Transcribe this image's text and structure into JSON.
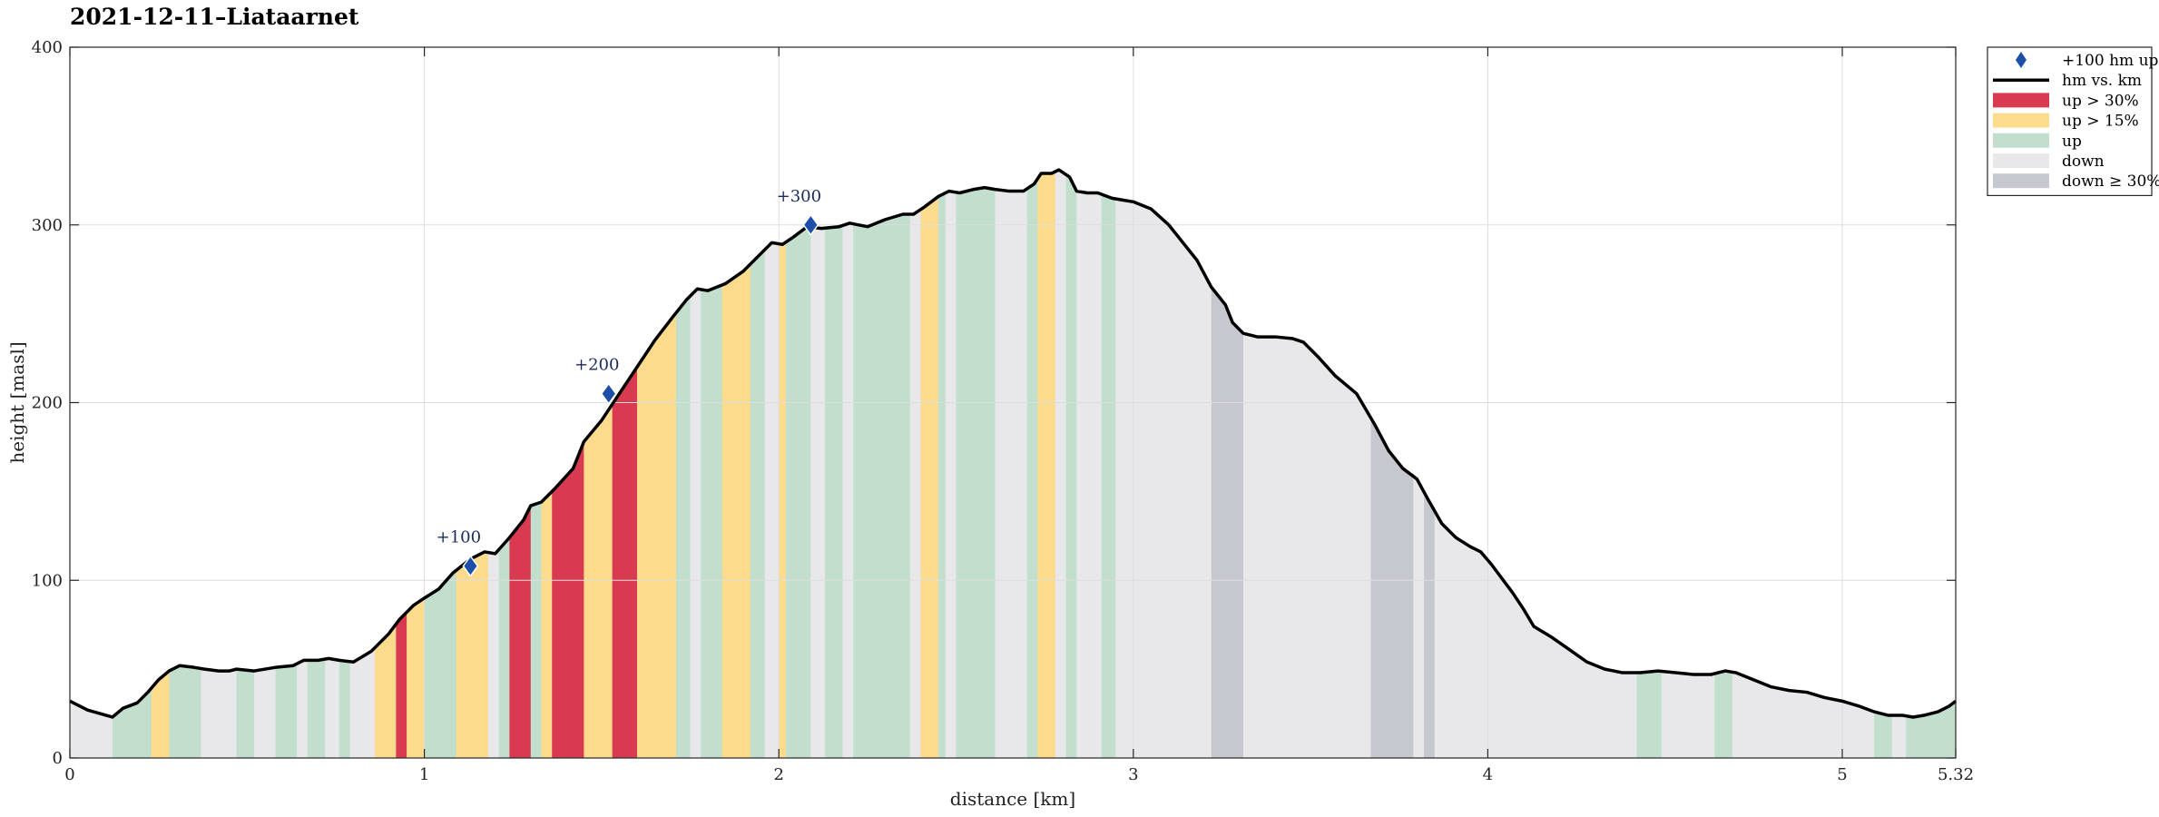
{
  "chart_data": {
    "type": "area",
    "title": "2021-12-11–Liataarnet",
    "xlabel": "distance [km]",
    "ylabel": "height [masl]",
    "xlim": [
      0,
      5.32
    ],
    "ylim": [
      0,
      400
    ],
    "x_ticks": [
      "0",
      "1",
      "2",
      "3",
      "4",
      "5",
      "5.32"
    ],
    "x_tick_values": [
      0,
      1,
      2,
      3,
      4,
      5,
      5.32
    ],
    "y_ticks": [
      "0",
      "100",
      "200",
      "300",
      "400"
    ],
    "y_tick_values": [
      0,
      100,
      200,
      300,
      400
    ],
    "grid": true,
    "legend_position": "outside-top-right",
    "colors": {
      "up30": "#D83A52",
      "up15": "#FDDB8C",
      "up": "#C2DECD",
      "down": "#E8E8EB",
      "down30": "#C6C8D0",
      "line": "#000000",
      "marker": "#1E4FA8",
      "grid": "#DDDDDD"
    },
    "series": [
      {
        "name": "hm vs. km",
        "x": [
          0,
          0.05,
          0.12,
          0.15,
          0.19,
          0.22,
          0.25,
          0.28,
          0.31,
          0.35,
          0.38,
          0.42,
          0.45,
          0.47,
          0.52,
          0.58,
          0.63,
          0.66,
          0.7,
          0.73,
          0.76,
          0.8,
          0.85,
          0.9,
          0.93,
          0.97,
          1.0,
          1.04,
          1.08,
          1.13,
          1.17,
          1.2,
          1.24,
          1.28,
          1.3,
          1.33,
          1.37,
          1.42,
          1.45,
          1.5,
          1.55,
          1.6,
          1.65,
          1.7,
          1.74,
          1.77,
          1.8,
          1.85,
          1.9,
          1.95,
          1.98,
          2.01,
          2.04,
          2.08,
          2.12,
          2.17,
          2.2,
          2.25,
          2.3,
          2.35,
          2.38,
          2.41,
          2.45,
          2.48,
          2.51,
          2.55,
          2.58,
          2.61,
          2.65,
          2.69,
          2.72,
          2.74,
          2.77,
          2.79,
          2.82,
          2.84,
          2.87,
          2.9,
          2.94,
          2.97,
          3.0,
          3.05,
          3.1,
          3.14,
          3.18,
          3.22,
          3.26,
          3.28,
          3.31,
          3.35,
          3.4,
          3.45,
          3.48,
          3.52,
          3.57,
          3.63,
          3.68,
          3.72,
          3.76,
          3.8,
          3.83,
          3.87,
          3.91,
          3.95,
          3.98,
          4.01,
          4.04,
          4.07,
          4.1,
          4.13,
          4.18,
          4.23,
          4.28,
          4.33,
          4.38,
          4.43,
          4.48,
          4.53,
          4.58,
          4.63,
          4.67,
          4.7,
          4.75,
          4.8,
          4.85,
          4.9,
          4.95,
          5.0,
          5.05,
          5.09,
          5.13,
          5.17,
          5.2,
          5.23,
          5.27,
          5.3,
          5.32
        ],
        "y": [
          32,
          27,
          23,
          28,
          31,
          37,
          44,
          49,
          52,
          51,
          50,
          49,
          49,
          50,
          49,
          51,
          52,
          55,
          55,
          56,
          55,
          54,
          60,
          70,
          78,
          86,
          90,
          95,
          104,
          112,
          116,
          115,
          124,
          134,
          142,
          144,
          152,
          163,
          178,
          190,
          205,
          220,
          235,
          248,
          258,
          264,
          263,
          267,
          274,
          284,
          290,
          289,
          293,
          299,
          298,
          299,
          301,
          299,
          303,
          306,
          306,
          310,
          316,
          319,
          318,
          320,
          321,
          320,
          319,
          319,
          323,
          329,
          329,
          331,
          327,
          319,
          318,
          318,
          315,
          314,
          313,
          309,
          300,
          290,
          280,
          265,
          255,
          245,
          239,
          237,
          237,
          236,
          234,
          226,
          215,
          205,
          188,
          173,
          163,
          157,
          146,
          132,
          124,
          119,
          116,
          109,
          101,
          93,
          84,
          74,
          68,
          61,
          54,
          50,
          48,
          48,
          49,
          48,
          47,
          47,
          49,
          48,
          44,
          40,
          38,
          37,
          34,
          32,
          29,
          26,
          24,
          24,
          23,
          24,
          26,
          29,
          32
        ]
      }
    ],
    "grade_bands": [
      {
        "x0": 0.0,
        "x1": 0.12,
        "class": "down"
      },
      {
        "x0": 0.12,
        "x1": 0.23,
        "class": "up"
      },
      {
        "x0": 0.23,
        "x1": 0.28,
        "class": "up15"
      },
      {
        "x0": 0.28,
        "x1": 0.37,
        "class": "up"
      },
      {
        "x0": 0.37,
        "x1": 0.47,
        "class": "down"
      },
      {
        "x0": 0.47,
        "x1": 0.52,
        "class": "up"
      },
      {
        "x0": 0.52,
        "x1": 0.58,
        "class": "down"
      },
      {
        "x0": 0.58,
        "x1": 0.64,
        "class": "up"
      },
      {
        "x0": 0.64,
        "x1": 0.67,
        "class": "down"
      },
      {
        "x0": 0.67,
        "x1": 0.72,
        "class": "up"
      },
      {
        "x0": 0.72,
        "x1": 0.76,
        "class": "down"
      },
      {
        "x0": 0.76,
        "x1": 0.79,
        "class": "up"
      },
      {
        "x0": 0.79,
        "x1": 0.86,
        "class": "down"
      },
      {
        "x0": 0.86,
        "x1": 0.92,
        "class": "up15"
      },
      {
        "x0": 0.92,
        "x1": 0.95,
        "class": "up30"
      },
      {
        "x0": 0.95,
        "x1": 1.0,
        "class": "up15"
      },
      {
        "x0": 1.0,
        "x1": 1.09,
        "class": "up"
      },
      {
        "x0": 1.09,
        "x1": 1.18,
        "class": "up15"
      },
      {
        "x0": 1.18,
        "x1": 1.21,
        "class": "down"
      },
      {
        "x0": 1.21,
        "x1": 1.24,
        "class": "up"
      },
      {
        "x0": 1.24,
        "x1": 1.3,
        "class": "up30"
      },
      {
        "x0": 1.3,
        "x1": 1.33,
        "class": "up"
      },
      {
        "x0": 1.33,
        "x1": 1.36,
        "class": "up15"
      },
      {
        "x0": 1.36,
        "x1": 1.45,
        "class": "up30"
      },
      {
        "x0": 1.45,
        "x1": 1.53,
        "class": "up15"
      },
      {
        "x0": 1.53,
        "x1": 1.6,
        "class": "up30"
      },
      {
        "x0": 1.6,
        "x1": 1.71,
        "class": "up15"
      },
      {
        "x0": 1.71,
        "x1": 1.75,
        "class": "up"
      },
      {
        "x0": 1.75,
        "x1": 1.78,
        "class": "down"
      },
      {
        "x0": 1.78,
        "x1": 1.84,
        "class": "up"
      },
      {
        "x0": 1.84,
        "x1": 1.92,
        "class": "up15"
      },
      {
        "x0": 1.92,
        "x1": 1.96,
        "class": "up"
      },
      {
        "x0": 1.96,
        "x1": 2.0,
        "class": "down"
      },
      {
        "x0": 2.0,
        "x1": 2.02,
        "class": "up15"
      },
      {
        "x0": 2.02,
        "x1": 2.09,
        "class": "up"
      },
      {
        "x0": 2.09,
        "x1": 2.13,
        "class": "down"
      },
      {
        "x0": 2.13,
        "x1": 2.18,
        "class": "up"
      },
      {
        "x0": 2.18,
        "x1": 2.21,
        "class": "down"
      },
      {
        "x0": 2.21,
        "x1": 2.37,
        "class": "up"
      },
      {
        "x0": 2.37,
        "x1": 2.4,
        "class": "down"
      },
      {
        "x0": 2.4,
        "x1": 2.45,
        "class": "up15"
      },
      {
        "x0": 2.45,
        "x1": 2.47,
        "class": "up"
      },
      {
        "x0": 2.47,
        "x1": 2.5,
        "class": "down"
      },
      {
        "x0": 2.5,
        "x1": 2.61,
        "class": "up"
      },
      {
        "x0": 2.61,
        "x1": 2.7,
        "class": "down"
      },
      {
        "x0": 2.7,
        "x1": 2.73,
        "class": "up"
      },
      {
        "x0": 2.73,
        "x1": 2.78,
        "class": "up15"
      },
      {
        "x0": 2.78,
        "x1": 2.81,
        "class": "down"
      },
      {
        "x0": 2.81,
        "x1": 2.84,
        "class": "up"
      },
      {
        "x0": 2.84,
        "x1": 2.91,
        "class": "down"
      },
      {
        "x0": 2.91,
        "x1": 2.95,
        "class": "up"
      },
      {
        "x0": 2.95,
        "x1": 3.22,
        "class": "down"
      },
      {
        "x0": 3.22,
        "x1": 3.31,
        "class": "down30"
      },
      {
        "x0": 3.31,
        "x1": 3.67,
        "class": "down"
      },
      {
        "x0": 3.67,
        "x1": 3.79,
        "class": "down30"
      },
      {
        "x0": 3.79,
        "x1": 3.82,
        "class": "down"
      },
      {
        "x0": 3.82,
        "x1": 3.85,
        "class": "down30"
      },
      {
        "x0": 3.85,
        "x1": 4.42,
        "class": "down"
      },
      {
        "x0": 4.42,
        "x1": 4.49,
        "class": "up"
      },
      {
        "x0": 4.49,
        "x1": 4.64,
        "class": "down"
      },
      {
        "x0": 4.64,
        "x1": 4.69,
        "class": "up"
      },
      {
        "x0": 4.69,
        "x1": 5.09,
        "class": "down"
      },
      {
        "x0": 5.09,
        "x1": 5.14,
        "class": "up"
      },
      {
        "x0": 5.14,
        "x1": 5.18,
        "class": "down"
      },
      {
        "x0": 5.18,
        "x1": 5.32,
        "class": "up"
      }
    ],
    "milestones": [
      {
        "label": "+100",
        "x": 1.13,
        "y": 108
      },
      {
        "label": "+200",
        "x": 1.52,
        "y": 205
      },
      {
        "label": "+300",
        "x": 2.09,
        "y": 300
      }
    ],
    "legend": [
      {
        "label": "+100 hm up",
        "kind": "marker"
      },
      {
        "label": "hm vs. km",
        "kind": "line"
      },
      {
        "label": "up > 30%",
        "kind": "patch",
        "class": "up30"
      },
      {
        "label": "up > 15%",
        "kind": "patch",
        "class": "up15"
      },
      {
        "label": "up",
        "kind": "patch",
        "class": "up"
      },
      {
        "label": "down",
        "kind": "patch",
        "class": "down"
      },
      {
        "label": "down ≥ 30%",
        "kind": "patch",
        "class": "down30"
      }
    ]
  }
}
